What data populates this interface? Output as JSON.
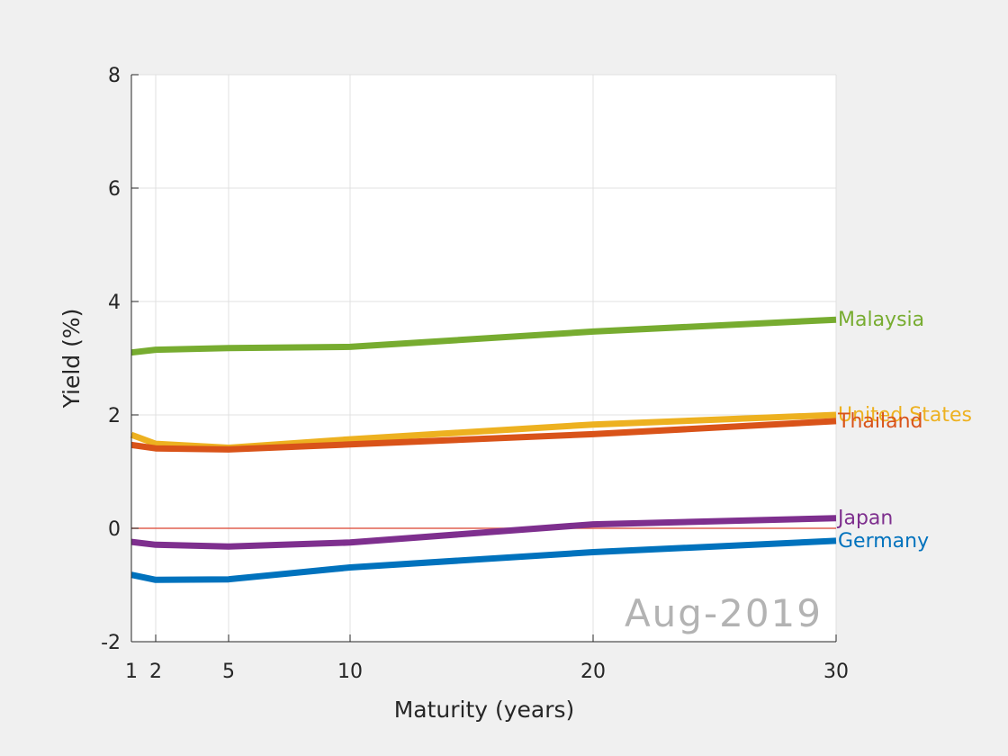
{
  "chart_data": {
    "type": "line",
    "xlabel": "Maturity (years)",
    "ylabel": "Yield (%)",
    "xlim": [
      1,
      30
    ],
    "ylim": [
      -2,
      8
    ],
    "x_ticks": [
      1,
      2,
      5,
      10,
      20,
      30
    ],
    "y_ticks": [
      -2,
      0,
      2,
      4,
      6,
      8
    ],
    "grid": true,
    "annotation": "Aug-2019",
    "reference_line": {
      "y": 0,
      "color": "#e06050"
    },
    "series": [
      {
        "name": "Malaysia",
        "color": "#77ac30",
        "x": [
          1,
          2,
          5,
          10,
          20,
          30
        ],
        "values": [
          3.1,
          3.15,
          3.18,
          3.2,
          3.47,
          3.68
        ]
      },
      {
        "name": "United States",
        "color": "#edb120",
        "x": [
          1,
          2,
          5,
          10,
          20,
          30
        ],
        "values": [
          1.65,
          1.49,
          1.42,
          1.57,
          1.83,
          2.0
        ]
      },
      {
        "name": "Thailand",
        "color": "#d95319",
        "x": [
          1,
          2,
          5,
          10,
          20,
          30
        ],
        "values": [
          1.47,
          1.41,
          1.39,
          1.48,
          1.66,
          1.89
        ]
      },
      {
        "name": "Japan",
        "color": "#7e2f8e",
        "x": [
          1,
          2,
          5,
          10,
          20,
          30
        ],
        "values": [
          -0.24,
          -0.29,
          -0.32,
          -0.25,
          0.07,
          0.18
        ]
      },
      {
        "name": "Germany",
        "color": "#0072bd",
        "x": [
          1,
          2,
          5,
          10,
          20,
          30
        ],
        "values": [
          -0.82,
          -0.91,
          -0.9,
          -0.69,
          -0.42,
          -0.22
        ]
      }
    ]
  }
}
